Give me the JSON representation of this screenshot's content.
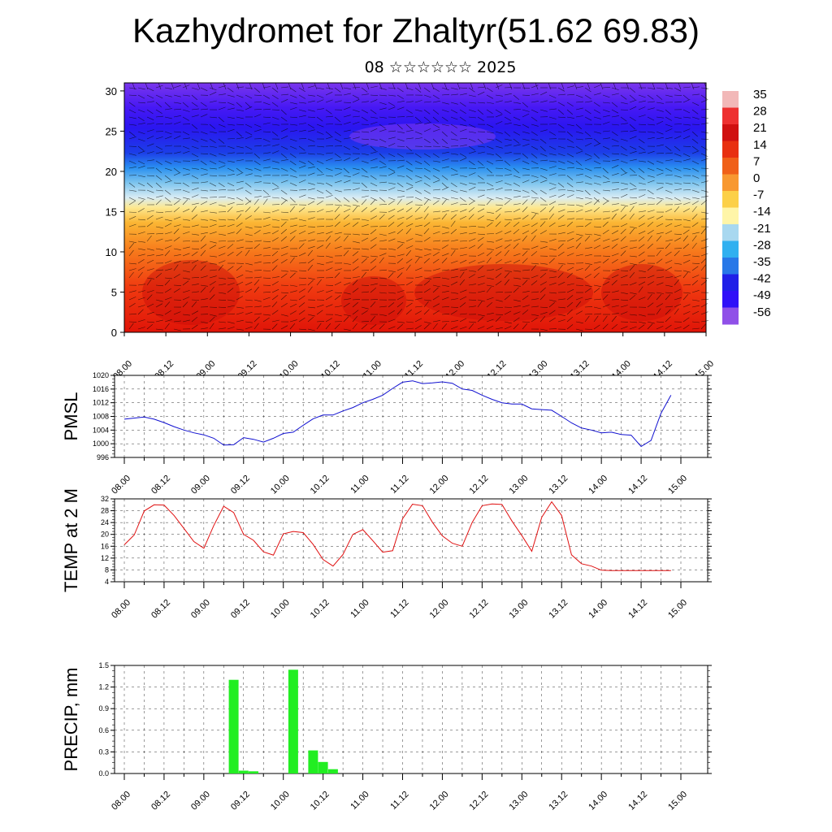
{
  "header": {
    "title": "Kazhydromet for Zhaltyr(51.62 69.83)",
    "subtitle": "08 ☆☆☆☆☆☆ 2025"
  },
  "colors": {
    "pmsl_line": "#1010d0",
    "temp_line": "#e01010",
    "precip_bar": "#22ee22",
    "axes": "#000000"
  },
  "chart_data": [
    {
      "id": "cross-section",
      "type": "heatmap",
      "title": "",
      "ylim": [
        0,
        31
      ],
      "yticks": [
        0,
        5,
        10,
        15,
        20,
        25,
        30
      ],
      "xticks": [
        "08.00",
        "08.12",
        "09.00",
        "09.12",
        "10.00",
        "10.12",
        "11.00",
        "11.12",
        "12.00",
        "12.12",
        "13.00",
        "13.12",
        "14.00",
        "14.12",
        "15.00"
      ],
      "colorbar": {
        "labels": [
          "35",
          "28",
          "21",
          "14",
          "7",
          "0",
          "-7",
          "-14",
          "-21",
          "-28",
          "-35",
          "-42",
          "-49",
          "-56"
        ],
        "colors": [
          "#f2b8b8",
          "#ee3030",
          "#d01010",
          "#e83010",
          "#f06018",
          "#f89830",
          "#fcd048",
          "#fff5a8",
          "#a8d8f0",
          "#30b0f0",
          "#2878e8",
          "#2020e8",
          "#3010f8",
          "#9050e8"
        ]
      },
      "note_layers": "temperature shading by height level with wind barbs"
    },
    {
      "id": "pmsl",
      "type": "line",
      "ylabel": "PMSL",
      "ylim": [
        996,
        1020
      ],
      "yticks": [
        996,
        1000,
        1004,
        1008,
        1012,
        1016,
        1020
      ],
      "xticks": [
        "08.00",
        "08.12",
        "09.00",
        "09.12",
        "10.00",
        "10.12",
        "11.00",
        "11.12",
        "12.00",
        "12.12",
        "13.00",
        "13.12",
        "14.00",
        "14.12",
        "15.00"
      ],
      "x_hours": [
        0,
        6,
        9,
        12,
        15,
        18,
        21,
        24,
        27,
        30,
        33,
        36,
        39,
        42,
        45,
        48,
        51,
        54,
        57,
        60,
        63,
        66,
        69,
        72,
        75,
        78,
        81,
        84,
        87,
        90,
        93,
        96,
        99,
        102,
        105,
        108,
        111,
        114,
        117,
        120,
        123,
        126,
        129,
        132,
        135,
        138,
        141,
        144,
        147,
        150,
        153,
        156,
        159,
        162,
        165
      ],
      "values": [
        1007.2,
        1007.8,
        1007.2,
        1006.2,
        1005,
        1004,
        1003.2,
        1002.6,
        1001.6,
        999.6,
        999.7,
        1001.8,
        1001.3,
        1000.5,
        1001.6,
        1003,
        1003.4,
        1005.4,
        1007.3,
        1008.4,
        1008.4,
        1009.6,
        1010.6,
        1012,
        1013,
        1014.2,
        1016.2,
        1018,
        1018.4,
        1017.6,
        1017.8,
        1018.1,
        1017.7,
        1016,
        1015.6,
        1014.2,
        1013,
        1012,
        1011.6,
        1011.6,
        1010.2,
        1010,
        1009.8,
        1008,
        1006.1,
        1004.6,
        1004,
        1003.2,
        1003.4,
        1002.7,
        1002.5,
        999.2,
        1001,
        1008.9,
        1014.2
      ],
      "series_end": 1014.2
    },
    {
      "id": "temp2m",
      "type": "line",
      "ylabel": "TEMP at 2 M",
      "ylim": [
        4,
        32
      ],
      "yticks": [
        4,
        8,
        12,
        16,
        20,
        24,
        28,
        32
      ],
      "xticks": [
        "08.00",
        "08.12",
        "09.00",
        "09.12",
        "10.00",
        "10.12",
        "11.00",
        "11.12",
        "12.00",
        "12.12",
        "13.00",
        "13.12",
        "14.00",
        "14.12",
        "15.00"
      ],
      "x_hours": [
        0,
        3,
        6,
        9,
        12,
        15,
        18,
        21,
        24,
        27,
        30,
        33,
        36,
        39,
        42,
        45,
        48,
        51,
        54,
        57,
        60,
        63,
        66,
        69,
        72,
        75,
        78,
        81,
        84,
        87,
        90,
        93,
        96,
        99,
        102,
        105,
        108,
        111,
        114,
        117,
        120,
        123,
        126,
        129,
        132,
        135,
        138,
        141,
        144,
        147,
        150,
        153,
        156,
        159,
        162,
        165
      ],
      "values": [
        16.5,
        19.8,
        27.9,
        30,
        29.9,
        26.4,
        22,
        17.6,
        15.3,
        23,
        29.5,
        27.4,
        20,
        18,
        14.1,
        13,
        20.2,
        21,
        20.6,
        16.6,
        11.5,
        9.3,
        13.2,
        20,
        21.6,
        17.9,
        14,
        14.5,
        25.3,
        30.2,
        29.7,
        24.1,
        19.5,
        17,
        16,
        24,
        29.7,
        30.3,
        30.1,
        24.5,
        19.6,
        14.3,
        25.8,
        31,
        26.4,
        13.1,
        10.1,
        9.3,
        7.9,
        7.8,
        7.8,
        7.8,
        7.8,
        7.8,
        7.8,
        7.8
      ]
    },
    {
      "id": "precip",
      "type": "bar",
      "ylabel": "PRECIP, mm",
      "ylim": [
        0,
        1.5
      ],
      "yticks": [
        "0.0",
        "0.3",
        "0.6",
        "0.9",
        "1.2",
        "1.5"
      ],
      "xticks": [
        "08.00",
        "08.12",
        "09.00",
        "09.12",
        "10.00",
        "10.12",
        "11.00",
        "11.12",
        "12.00",
        "12.12",
        "13.00",
        "13.12",
        "14.00",
        "14.12",
        "15.00"
      ],
      "bars": [
        {
          "hour": 33,
          "value": 1.3
        },
        {
          "hour": 36,
          "value": 0.04
        },
        {
          "hour": 39,
          "value": 0.03
        },
        {
          "hour": 51,
          "value": 1.44
        },
        {
          "hour": 57,
          "value": 0.32
        },
        {
          "hour": 60,
          "value": 0.16
        },
        {
          "hour": 63,
          "value": 0.06
        }
      ]
    }
  ]
}
